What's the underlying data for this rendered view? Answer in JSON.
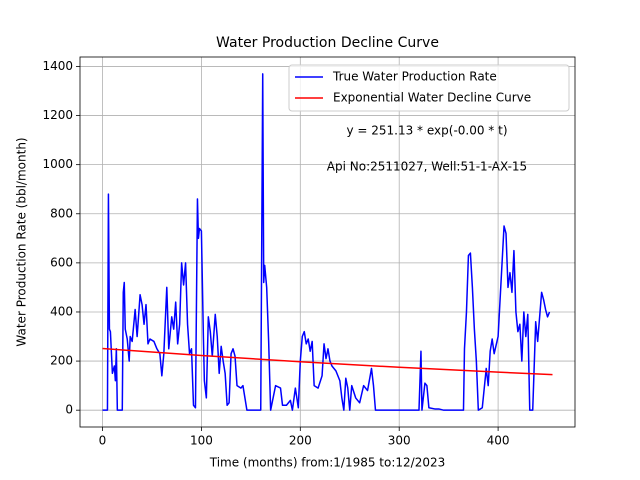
{
  "chart_data": {
    "type": "line",
    "title": "Water Production Decline Curve",
    "xlabel": "Time (months) from:1/1985 to:12/2023",
    "ylabel": "Water Production Rate (bbl/month)",
    "xlim": [
      -22.75,
      477.75
    ],
    "ylim": [
      -68.5,
      1438.5
    ],
    "xticks": [
      0,
      100,
      200,
      300,
      400
    ],
    "yticks": [
      0,
      200,
      400,
      600,
      800,
      1000,
      1200,
      1400
    ],
    "grid": true,
    "legend": "upper right",
    "annotations": [
      "y = 251.13 * exp(-0.00 * t)",
      "Api No:2511027, Well:51-1-AX-15"
    ],
    "series": [
      {
        "name": "True Water Production Rate",
        "color": "#0000ff",
        "x": [
          0,
          5,
          6,
          7,
          8,
          10,
          12,
          13,
          14,
          15,
          20,
          21,
          22,
          23,
          25,
          27,
          28,
          30,
          33,
          35,
          38,
          40,
          42,
          44,
          46,
          48,
          52,
          55,
          58,
          60,
          62,
          65,
          67,
          70,
          72,
          74,
          76,
          78,
          80,
          82,
          84,
          86,
          88,
          90,
          92,
          94,
          96,
          97,
          98,
          100,
          102,
          103,
          105,
          107,
          109,
          111,
          114,
          116,
          118,
          120,
          122,
          124,
          126,
          128,
          130,
          132,
          134,
          136,
          140,
          142,
          146,
          160,
          162,
          163,
          164,
          166,
          168,
          170,
          175,
          180,
          182,
          186,
          190,
          192,
          195,
          198,
          200,
          202,
          204,
          206,
          208,
          210,
          212,
          214,
          218,
          222,
          224,
          226,
          228,
          230,
          232,
          236,
          240,
          242,
          244,
          246,
          248,
          250,
          252,
          256,
          260,
          264,
          268,
          272,
          274,
          276,
          280,
          300,
          320,
          322,
          323,
          326,
          328,
          330,
          336,
          340,
          345,
          365,
          366,
          368,
          370,
          372,
          374,
          376,
          378,
          380,
          384,
          388,
          390,
          392,
          394,
          396,
          400,
          404,
          406,
          408,
          410,
          412,
          414,
          416,
          418,
          420,
          422,
          424,
          426,
          428,
          430,
          432,
          435,
          438,
          440,
          444,
          446,
          448,
          450,
          452
        ],
        "values": [
          0,
          0,
          880,
          330,
          320,
          150,
          180,
          120,
          250,
          0,
          0,
          480,
          520,
          330,
          290,
          200,
          300,
          280,
          410,
          300,
          470,
          430,
          350,
          430,
          270,
          290,
          280,
          250,
          230,
          140,
          230,
          500,
          250,
          380,
          330,
          440,
          270,
          350,
          600,
          510,
          600,
          350,
          230,
          250,
          20,
          10,
          860,
          700,
          740,
          730,
          300,
          120,
          50,
          380,
          320,
          220,
          390,
          300,
          150,
          260,
          200,
          150,
          20,
          30,
          230,
          250,
          220,
          100,
          90,
          100,
          0,
          0,
          1370,
          520,
          590,
          500,
          280,
          0,
          100,
          90,
          20,
          20,
          40,
          0,
          90,
          10,
          200,
          300,
          320,
          270,
          290,
          240,
          280,
          100,
          90,
          140,
          270,
          210,
          250,
          200,
          180,
          160,
          120,
          50,
          0,
          130,
          90,
          0,
          100,
          50,
          30,
          100,
          80,
          170,
          100,
          0,
          0,
          0,
          0,
          240,
          0,
          110,
          100,
          10,
          5,
          5,
          0,
          0,
          250,
          400,
          630,
          640,
          500,
          330,
          200,
          0,
          10,
          170,
          100,
          240,
          290,
          230,
          300,
          600,
          750,
          720,
          500,
          560,
          480,
          650,
          400,
          320,
          350,
          200,
          400,
          300,
          390,
          0,
          0,
          360,
          280,
          480,
          450,
          410,
          380,
          400
        ]
      },
      {
        "name": "Exponential Water Decline Curve",
        "color": "#ff0000",
        "x": [
          0,
          100,
          200,
          300,
          400,
          455
        ],
        "values": [
          251.1,
          222.5,
          197.2,
          174.7,
          154.8,
          145.0
        ]
      }
    ]
  }
}
